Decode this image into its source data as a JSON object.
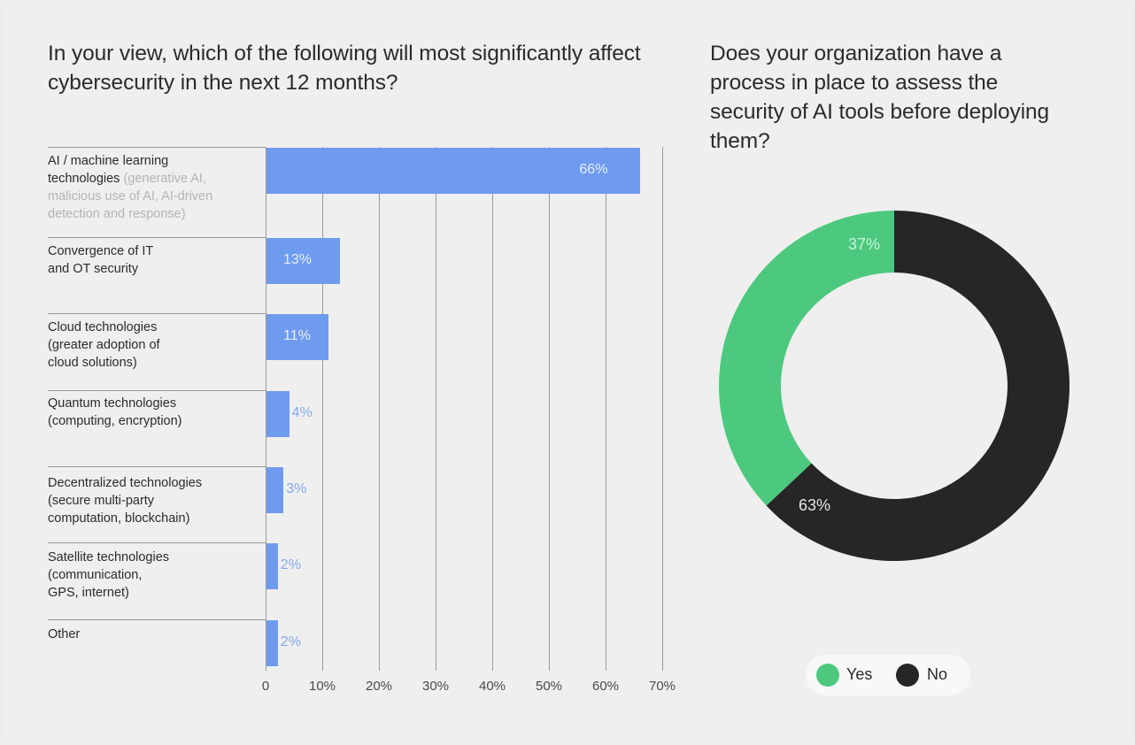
{
  "bar_chart": {
    "title": "In your view, which of the following will most significantly affect cybersecurity in the next 12 months?",
    "categories": [
      {
        "lines": [
          "AI / machine learning"
        ],
        "tail": "technologies",
        "sub": " (generative AI, malicious use of AI, AI-driven detection and response)"
      },
      {
        "lines": [
          "Convergence of IT",
          "and OT security"
        ]
      },
      {
        "lines": [
          "Cloud technologies",
          "(greater adoption of",
          "cloud solutions)"
        ]
      },
      {
        "lines": [
          "Quantum technologies",
          "(computing, encryption)"
        ]
      },
      {
        "lines": [
          "Decentralized technologies",
          "(secure multi-party",
          "computation, blockchain)"
        ]
      },
      {
        "lines": [
          "Satellite technologies",
          "(communication,",
          "GPS, internet)"
        ]
      },
      {
        "lines": [
          "Other"
        ]
      }
    ],
    "value_labels": [
      "66%",
      "13%",
      "11%",
      "4%",
      "3%",
      "2%",
      "2%"
    ],
    "x_ticks": [
      "0",
      "10%",
      "20%",
      "30%",
      "40%",
      "50%",
      "60%",
      "70%"
    ]
  },
  "donut_chart": {
    "title": "Does your organization have a process in place to assess the security of AI tools before deploying them?",
    "slices": [
      {
        "label": "37%",
        "value": 37,
        "color": "#4dc97f"
      },
      {
        "label": "63%",
        "value": 63,
        "color": "#262626"
      }
    ],
    "legend": [
      {
        "name": "Yes",
        "color": "#4dc97f"
      },
      {
        "name": "No",
        "color": "#262626"
      }
    ]
  },
  "chart_data": [
    {
      "type": "bar",
      "orientation": "horizontal",
      "title": "In your view, which of the following will most significantly affect cybersecurity in the next 12 months?",
      "categories": [
        "AI / machine learning technologies (generative AI, malicious use of AI, AI-driven detection and response)",
        "Convergence of IT and OT security",
        "Cloud technologies (greater adoption of cloud solutions)",
        "Quantum technologies (computing, encryption)",
        "Decentralized technologies (secure multi-party computation, blockchain)",
        "Satellite technologies (communication, GPS, internet)",
        "Other"
      ],
      "values": [
        66,
        13,
        11,
        4,
        3,
        2,
        2
      ],
      "xlim": [
        0,
        70
      ],
      "xlabel": "",
      "ylabel": "",
      "grid": true
    },
    {
      "type": "pie",
      "variant": "donut",
      "title": "Does your organization have a process in place to assess the security of AI tools before deploying them?",
      "categories": [
        "Yes",
        "No"
      ],
      "values": [
        37,
        63
      ],
      "legend": "bottom"
    }
  ]
}
